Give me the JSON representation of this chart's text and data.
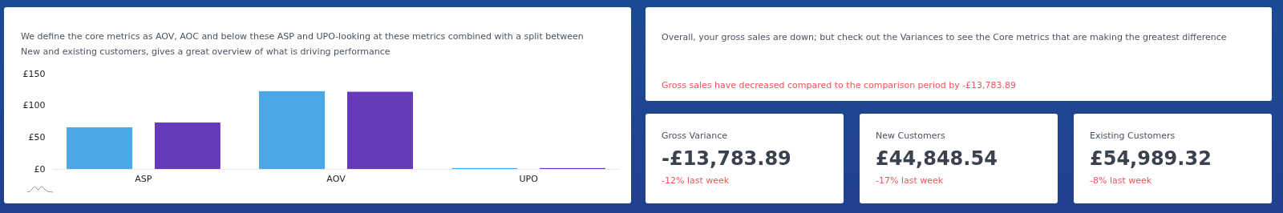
{
  "chart_data": [
    {
      "type": "bar",
      "title": "We define the core metrics as AOV, AOC and below these ASP and UPO-looking at these metrics combined with a split between New and existing customers, gives a great overview of what is driving performance",
      "categories": [
        "ASP",
        "AOV",
        "UPO"
      ],
      "series": [
        {
          "color": "#4aa8e6",
          "values": [
            66,
            123,
            2
          ]
        },
        {
          "color": "#663bb8",
          "values": [
            73,
            122,
            2
          ]
        }
      ],
      "ylim": [
        0,
        150
      ],
      "yticks": [
        {
          "value": 0,
          "label": "£0"
        },
        {
          "value": 50,
          "label": "£50"
        },
        {
          "value": 100,
          "label": "£100"
        },
        {
          "value": 150,
          "label": "£150"
        }
      ]
    },
    {
      "type": "other",
      "annotations": [
        "Overall, your gross sales are down; but check out the Variances to see the Core metrics that are making the greatest difference",
        "Gross sales have decreased compared to the comparison period by -£13,783.89"
      ]
    },
    {
      "type": "other",
      "title": "Gross Variance",
      "annotations": [
        "-£13,783.89",
        "-12% last week"
      ]
    },
    {
      "type": "other",
      "title": "New Customers",
      "annotations": [
        "£44,848.54",
        "-17% last week"
      ]
    },
    {
      "type": "other",
      "title": "Existing Customers",
      "annotations": [
        "£54,989.32",
        "-8% last week"
      ]
    }
  ]
}
